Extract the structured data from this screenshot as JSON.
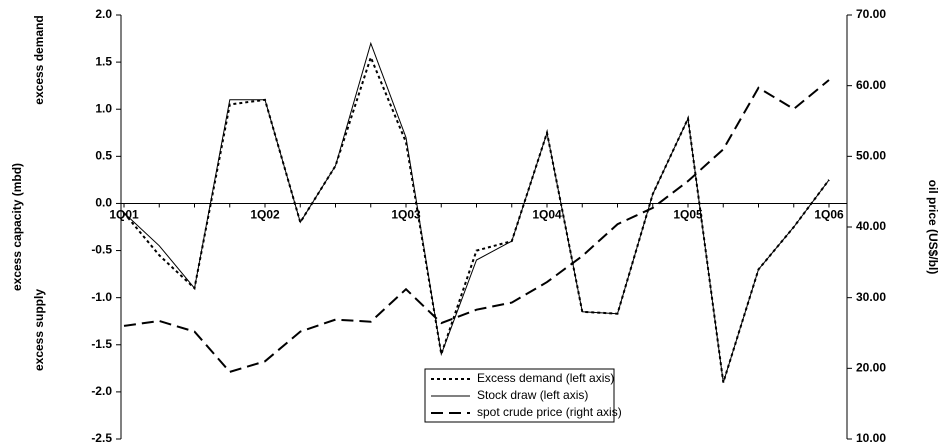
{
  "chart_data": {
    "type": "line",
    "y_label": "excess capacity (mbd)",
    "y_label_upper": "excess demand",
    "y_label_lower": "excess supply",
    "y2_label": "oil price (US$/bl)",
    "categories": [
      "1Q01",
      null,
      null,
      null,
      "1Q02",
      null,
      null,
      null,
      "1Q03",
      null,
      null,
      null,
      "1Q04",
      null,
      null,
      null,
      "1Q05",
      null,
      null,
      null,
      "1Q06"
    ],
    "series": [
      {
        "name": "Excess demand (left axis)",
        "color": "#000000",
        "style": "dotted",
        "values": [
          -0.1,
          -0.55,
          -0.9,
          1.05,
          1.1,
          -0.2,
          0.4,
          1.55,
          0.65,
          -1.6,
          -0.5,
          -0.4,
          0.75,
          -1.15,
          -1.17,
          0.1,
          0.9,
          -1.9,
          -0.7,
          -0.25,
          0.25
        ]
      },
      {
        "name": "Stock draw (left axis)",
        "color": "#000000",
        "style": "solid",
        "values": [
          -0.1,
          -0.45,
          -0.9,
          1.1,
          1.1,
          -0.2,
          0.4,
          1.7,
          0.7,
          -1.6,
          -0.6,
          -0.4,
          0.75,
          -1.15,
          -1.17,
          0.1,
          0.9,
          -1.9,
          -0.7,
          -0.25,
          0.25
        ]
      },
      {
        "name": "spot crude price (right axis)",
        "color": "#000000",
        "style": "dashed",
        "axis": "y2",
        "values": [
          26,
          26.7,
          25.2,
          19.5,
          21,
          25.2,
          26.9,
          26.6,
          31.2,
          26.4,
          28.3,
          29.3,
          32.2,
          35.9,
          40.4,
          42.7,
          46.5,
          51,
          59.7,
          56.7,
          60.8
        ]
      }
    ],
    "ylim": [
      -2.5,
      2.0
    ],
    "yticks": [
      {
        "value": 2.0,
        "label": "2.0"
      },
      1.5,
      {
        "value": 1.0,
        "label": "1.0"
      },
      0.5,
      {
        "value": 0.0,
        "label": "0.0"
      },
      -0.5,
      {
        "value": -1.0,
        "label": "-1.0"
      },
      -1.5,
      {
        "value": -2.0,
        "label": "-2.0"
      },
      -2.5
    ],
    "y2lim": [
      10,
      70
    ],
    "y2ticks": [
      {
        "value": 70,
        "label": "70.00"
      },
      {
        "value": 60,
        "label": "60.00"
      },
      {
        "value": 50,
        "label": "50.00"
      },
      {
        "value": 40,
        "label": "40.00"
      },
      {
        "value": 30,
        "label": "30.00"
      },
      {
        "value": 20,
        "label": "20.00"
      },
      {
        "value": 10,
        "label": "10.00"
      }
    ],
    "grid": false,
    "legend": "bottom"
  }
}
